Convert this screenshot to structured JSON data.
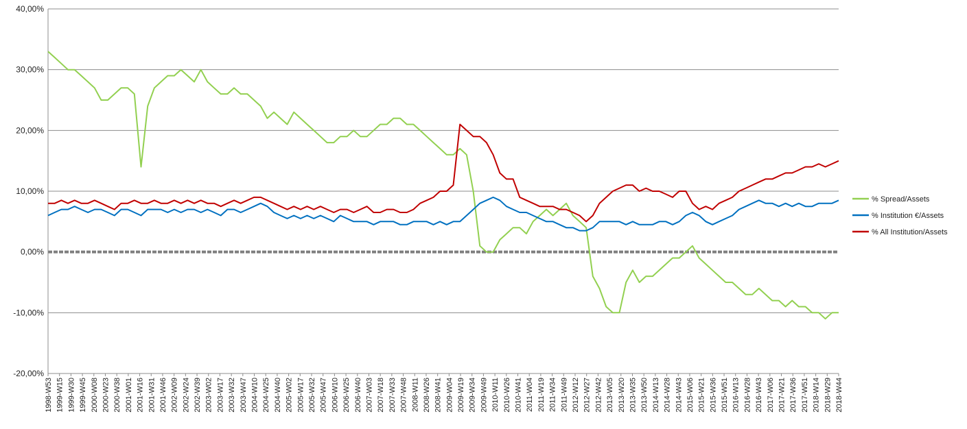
{
  "chart_data": {
    "type": "line",
    "title": "",
    "xlabel": "",
    "ylabel": "",
    "ylim": [
      -0.2,
      0.4
    ],
    "y_ticks": [
      {
        "value": 0.4,
        "label": "40,00%"
      },
      {
        "value": 0.3,
        "label": "30,00%"
      },
      {
        "value": 0.2,
        "label": "20,00%"
      },
      {
        "value": 0.1,
        "label": "10,00%"
      },
      {
        "value": 0.0,
        "label": "0,00%"
      },
      {
        "value": -0.1,
        "label": "-10,00%"
      },
      {
        "value": -0.2,
        "label": "-20,00%"
      }
    ],
    "x_tick_labels": [
      "1998-W53",
      "1999-W15",
      "1999-W30",
      "1999-W45",
      "2000-W08",
      "2000-W23",
      "2000-W38",
      "2001-W01",
      "2001-W16",
      "2001-W31",
      "2001-W46",
      "2002-W09",
      "2002-W24",
      "2002-W39",
      "2003-W02",
      "2003-W17",
      "2003-W32",
      "2003-W47",
      "2004-W10",
      "2004-W25",
      "2004-W40",
      "2005-W02",
      "2005-W17",
      "2005-W32",
      "2005-W47",
      "2006-W10",
      "2006-W25",
      "2006-W40",
      "2007-W03",
      "2007-W18",
      "2007-W33",
      "2007-W48",
      "2008-W11",
      "2008-W26",
      "2008-W41",
      "2009-W04",
      "2009-W19",
      "2009-W34",
      "2009-W49",
      "2010-W11",
      "2010-W26",
      "2010-W41",
      "2011-W04",
      "2011-W19",
      "2011-W34",
      "2011-W49",
      "2012-W12",
      "2012-W27",
      "2012-W42",
      "2013-W05",
      "2013-W20",
      "2013-W35",
      "2013-W50",
      "2014-W13",
      "2014-W28",
      "2014-W43",
      "2015-W06",
      "2015-W21",
      "2015-W36",
      "2015-W51",
      "2016-W13",
      "2016-W28",
      "2016-W43",
      "2017-W06",
      "2017-W21",
      "2017-W36",
      "2017-W51",
      "2018-W14",
      "2018-W29",
      "2018-W44"
    ],
    "grid": true,
    "legend_position": "right",
    "zero_line_style": "dashed",
    "series": [
      {
        "name": "% Spread/Assets",
        "color": "#92d050",
        "values": [
          0.33,
          0.32,
          0.31,
          0.3,
          0.3,
          0.29,
          0.28,
          0.27,
          0.25,
          0.25,
          0.26,
          0.27,
          0.27,
          0.26,
          0.14,
          0.24,
          0.27,
          0.28,
          0.29,
          0.29,
          0.3,
          0.29,
          0.28,
          0.3,
          0.28,
          0.27,
          0.26,
          0.26,
          0.27,
          0.26,
          0.26,
          0.25,
          0.24,
          0.22,
          0.23,
          0.22,
          0.21,
          0.23,
          0.22,
          0.21,
          0.2,
          0.19,
          0.18,
          0.18,
          0.19,
          0.19,
          0.2,
          0.19,
          0.19,
          0.2,
          0.21,
          0.21,
          0.22,
          0.22,
          0.21,
          0.21,
          0.2,
          0.19,
          0.18,
          0.17,
          0.16,
          0.16,
          0.17,
          0.16,
          0.1,
          0.01,
          0.0,
          0.0,
          0.02,
          0.03,
          0.04,
          0.04,
          0.03,
          0.05,
          0.06,
          0.07,
          0.06,
          0.07,
          0.08,
          0.06,
          0.05,
          0.04,
          -0.04,
          -0.06,
          -0.09,
          -0.1,
          -0.1,
          -0.05,
          -0.03,
          -0.05,
          -0.04,
          -0.04,
          -0.03,
          -0.02,
          -0.01,
          -0.01,
          0.0,
          0.01,
          -0.01,
          -0.02,
          -0.03,
          -0.04,
          -0.05,
          -0.05,
          -0.06,
          -0.07,
          -0.07,
          -0.06,
          -0.07,
          -0.08,
          -0.08,
          -0.09,
          -0.08,
          -0.09,
          -0.09,
          -0.1,
          -0.1,
          -0.11,
          -0.1,
          -0.1
        ]
      },
      {
        "name": "% Institution  €/Assets",
        "color": "#0070c0",
        "values": [
          0.06,
          0.065,
          0.07,
          0.07,
          0.075,
          0.07,
          0.065,
          0.07,
          0.07,
          0.065,
          0.06,
          0.07,
          0.07,
          0.065,
          0.06,
          0.07,
          0.07,
          0.07,
          0.065,
          0.07,
          0.065,
          0.07,
          0.07,
          0.065,
          0.07,
          0.065,
          0.06,
          0.07,
          0.07,
          0.065,
          0.07,
          0.075,
          0.08,
          0.075,
          0.065,
          0.06,
          0.055,
          0.06,
          0.055,
          0.06,
          0.055,
          0.06,
          0.055,
          0.05,
          0.06,
          0.055,
          0.05,
          0.05,
          0.05,
          0.045,
          0.05,
          0.05,
          0.05,
          0.045,
          0.045,
          0.05,
          0.05,
          0.05,
          0.045,
          0.05,
          0.045,
          0.05,
          0.05,
          0.06,
          0.07,
          0.08,
          0.085,
          0.09,
          0.085,
          0.075,
          0.07,
          0.065,
          0.065,
          0.06,
          0.055,
          0.05,
          0.05,
          0.045,
          0.04,
          0.04,
          0.035,
          0.035,
          0.04,
          0.05,
          0.05,
          0.05,
          0.05,
          0.045,
          0.05,
          0.045,
          0.045,
          0.045,
          0.05,
          0.05,
          0.045,
          0.05,
          0.06,
          0.065,
          0.06,
          0.05,
          0.045,
          0.05,
          0.055,
          0.06,
          0.07,
          0.075,
          0.08,
          0.085,
          0.08,
          0.08,
          0.075,
          0.08,
          0.075,
          0.08,
          0.075,
          0.075,
          0.08,
          0.08,
          0.08,
          0.085
        ]
      },
      {
        "name": "% All Institution/Assets",
        "color": "#c00000",
        "values": [
          0.08,
          0.08,
          0.085,
          0.08,
          0.085,
          0.08,
          0.08,
          0.085,
          0.08,
          0.075,
          0.07,
          0.08,
          0.08,
          0.085,
          0.08,
          0.08,
          0.085,
          0.08,
          0.08,
          0.085,
          0.08,
          0.085,
          0.08,
          0.085,
          0.08,
          0.08,
          0.075,
          0.08,
          0.085,
          0.08,
          0.085,
          0.09,
          0.09,
          0.085,
          0.08,
          0.075,
          0.07,
          0.075,
          0.07,
          0.075,
          0.07,
          0.075,
          0.07,
          0.065,
          0.07,
          0.07,
          0.065,
          0.07,
          0.075,
          0.065,
          0.065,
          0.07,
          0.07,
          0.065,
          0.065,
          0.07,
          0.08,
          0.085,
          0.09,
          0.1,
          0.1,
          0.11,
          0.21,
          0.2,
          0.19,
          0.19,
          0.18,
          0.16,
          0.13,
          0.12,
          0.12,
          0.09,
          0.085,
          0.08,
          0.075,
          0.075,
          0.075,
          0.07,
          0.07,
          0.065,
          0.06,
          0.05,
          0.06,
          0.08,
          0.09,
          0.1,
          0.105,
          0.11,
          0.11,
          0.1,
          0.105,
          0.1,
          0.1,
          0.095,
          0.09,
          0.1,
          0.1,
          0.08,
          0.07,
          0.075,
          0.07,
          0.08,
          0.085,
          0.09,
          0.1,
          0.105,
          0.11,
          0.115,
          0.12,
          0.12,
          0.125,
          0.13,
          0.13,
          0.135,
          0.14,
          0.14,
          0.145,
          0.14,
          0.145,
          0.15
        ]
      }
    ]
  }
}
